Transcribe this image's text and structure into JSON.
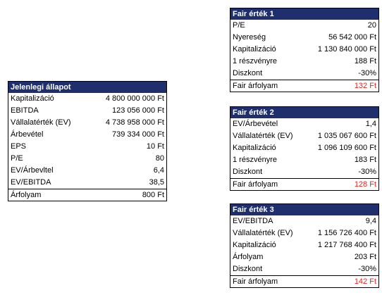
{
  "current": {
    "title": "Jelenlegi állapot",
    "rows": [
      {
        "label": "Kapitalizáció",
        "value": "4 800 000 000 Ft"
      },
      {
        "label": "EBITDA",
        "value": "123 056 000 Ft"
      },
      {
        "label": "Vállalatérték (EV)",
        "value": "4 738 958 000 Ft"
      },
      {
        "label": "Árbevétel",
        "value": "739 334 000 Ft"
      },
      {
        "label": "EPS",
        "value": "10 Ft"
      },
      {
        "label": "P/E",
        "value": "80"
      },
      {
        "label": "EV/Árbevltel",
        "value": "6,4"
      },
      {
        "label": "EV/EBITDA",
        "value": "38,5"
      },
      {
        "label": "Árfolyam",
        "value": "800 Ft"
      }
    ]
  },
  "fair1": {
    "title": "Fair érték 1",
    "rows": [
      {
        "label": "P/E",
        "value": "20"
      },
      {
        "label": "Nyereség",
        "value": "56 542 000 Ft"
      },
      {
        "label": "Kapitalizáció",
        "value": "1 130 840 000 Ft"
      },
      {
        "label": "1 részvényre",
        "value": "188 Ft"
      },
      {
        "label": "Diszkont",
        "value": "-30%"
      },
      {
        "label": "Fair árfolyam",
        "value": "132 Ft"
      }
    ]
  },
  "fair2": {
    "title": "Fair érték 2",
    "rows": [
      {
        "label": "EV/Árbevétel",
        "value": "1,4"
      },
      {
        "label": "Vállalatérték (EV)",
        "value": "1 035 067 600 Ft"
      },
      {
        "label": "Kapitalizáció",
        "value": "1 096 109 600 Ft"
      },
      {
        "label": "1 részvényre",
        "value": "183 Ft"
      },
      {
        "label": "Diszkont",
        "value": "-30%"
      },
      {
        "label": "Fair árfolyam",
        "value": "128 Ft"
      }
    ]
  },
  "fair3": {
    "title": "Fair érték 3",
    "rows": [
      {
        "label": "EV/EBITDA",
        "value": "9,4"
      },
      {
        "label": "Vállalatérték (EV)",
        "value": "1 156 726 400 Ft"
      },
      {
        "label": "Kapitalizáció",
        "value": "1 217 768 400 Ft"
      },
      {
        "label": "Árfolyam",
        "value": "203 Ft"
      },
      {
        "label": "Diszkont",
        "value": "-30%"
      },
      {
        "label": "Fair árfolyam",
        "value": "142 Ft"
      }
    ]
  },
  "colors": {
    "header_bg": "#1f2f6e",
    "header_text": "#ffffff",
    "highlight_value": "#e8221c"
  }
}
